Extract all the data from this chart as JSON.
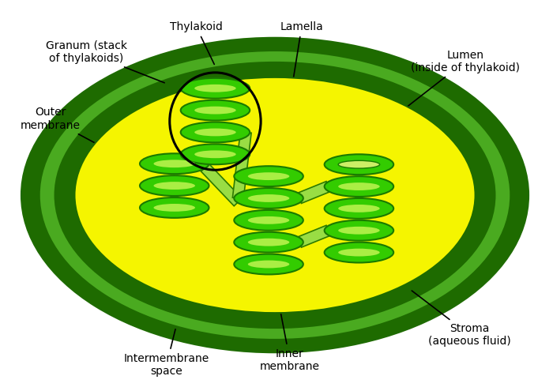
{
  "bg_color": "#ffffff",
  "dark_green": "#1e6b00",
  "mid_green": "#4aaa20",
  "light_green": "#6ec832",
  "yellow": "#f5f500",
  "thylakoid_green": "#33cc00",
  "thylakoid_dark": "#1a7a00",
  "thylakoid_lumen": "#aaee44",
  "lamella_color": "#99dd44",
  "lamella_edge": "#2d7a00",
  "granum_circle": "#000000",
  "labels": {
    "outer_membrane": "Outer\nmembrane",
    "intermembrane": "Intermembrane\nspace",
    "inner_membrane": "Inner\nmembrane",
    "stroma": "Stroma\n(aqueous fluid)",
    "granum": "Granum (stack\nof thylakoids)",
    "thylakoid": "Thylakoid",
    "lamella": "Lamella",
    "lumen": "Lumen\n(inside of thylakoid)"
  },
  "figsize": [
    7.0,
    4.95
  ],
  "dpi": 100
}
